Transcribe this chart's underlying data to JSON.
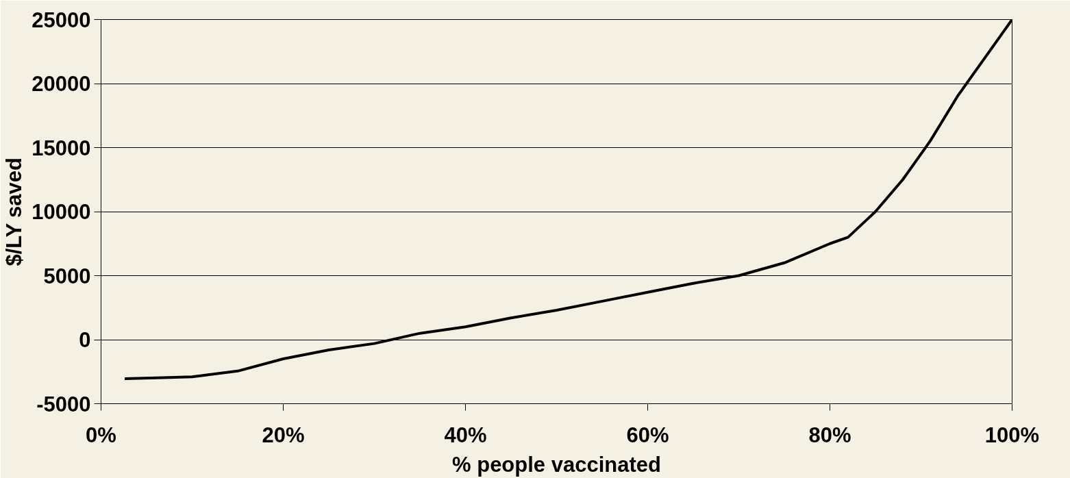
{
  "chart_data": {
    "type": "line",
    "xlabel": "% people vaccinated",
    "ylabel": "$/LY saved",
    "series": [
      {
        "color": "#000000",
        "x": [
          2.6,
          10,
          15,
          20,
          25,
          30,
          35,
          40,
          45,
          50,
          55,
          60,
          65,
          70,
          75,
          80,
          82,
          85,
          88,
          91,
          94,
          97,
          100
        ],
        "values": [
          -3050,
          -2900,
          -2450,
          -1500,
          -800,
          -300,
          500,
          1000,
          1700,
          2300,
          3000,
          3700,
          4400,
          5000,
          6000,
          7500,
          8000,
          10000,
          12500,
          15500,
          19000,
          22000,
          25000
        ]
      }
    ],
    "xlim": [
      0,
      100
    ],
    "xticks": [
      {
        "value": 0,
        "label": "0%"
      },
      {
        "value": 20,
        "label": "20%"
      },
      {
        "value": 40,
        "label": "40%"
      },
      {
        "value": 60,
        "label": "60%"
      },
      {
        "value": 80,
        "label": "80%"
      },
      {
        "value": 100,
        "label": "100%"
      }
    ],
    "ylim": [
      -5000,
      25000
    ],
    "yticks": [
      -5000,
      0,
      5000,
      10000,
      15000,
      20000,
      25000
    ],
    "grid": "y",
    "marker": "none",
    "line_style": "solid"
  }
}
